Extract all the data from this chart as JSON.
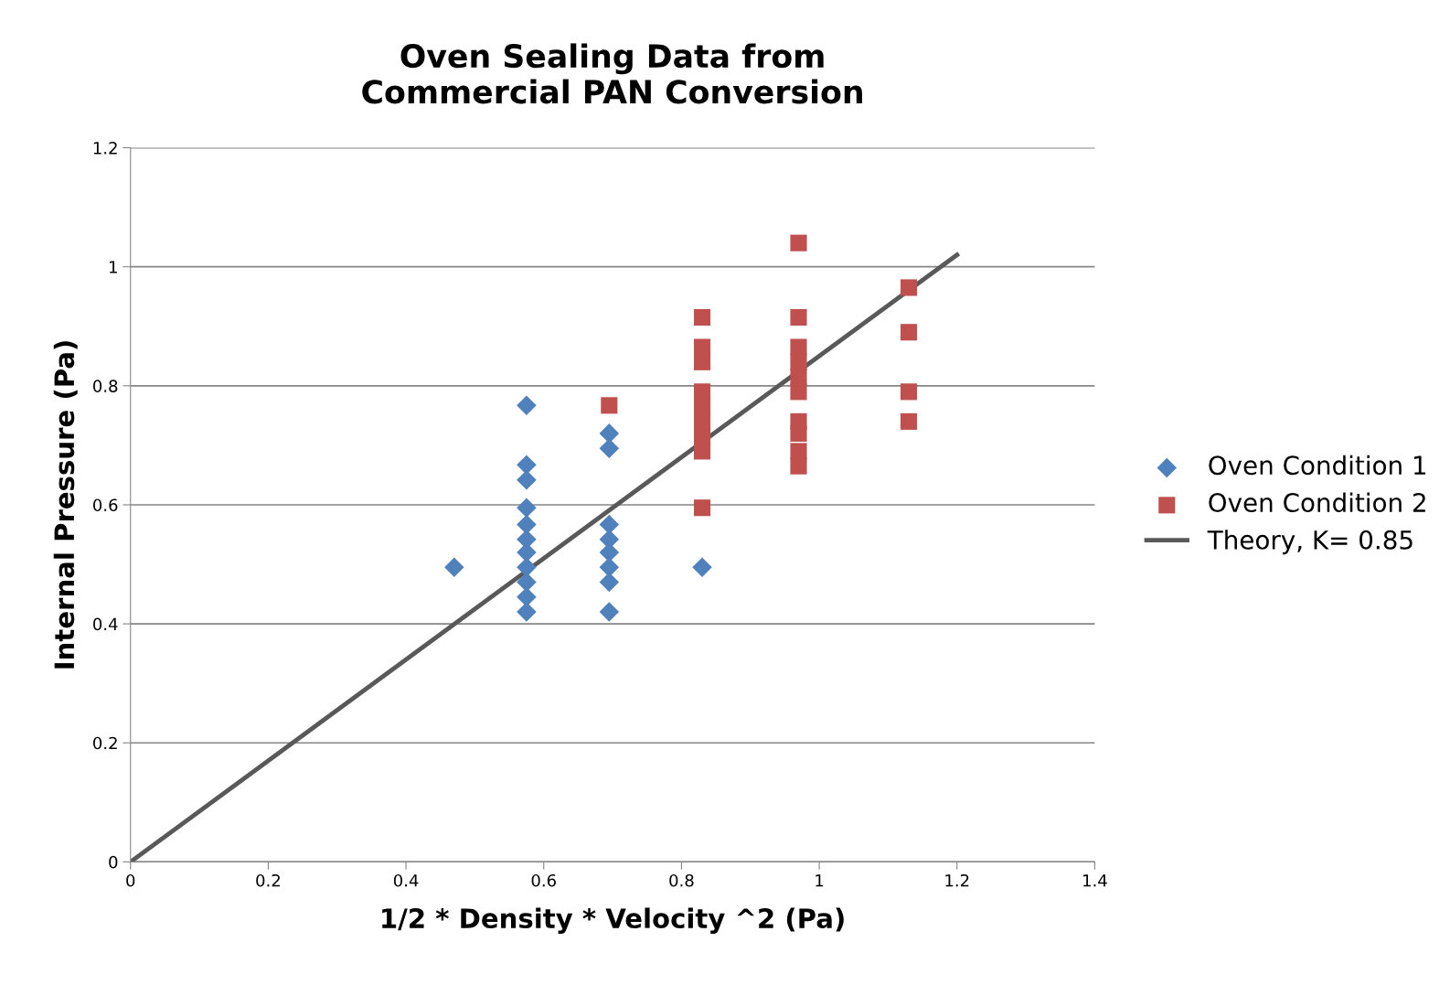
{
  "chart_data": {
    "type": "scatter",
    "title": "Oven Sealing Data from\nCommercial PAN Conversion",
    "xlabel": "1/2 * Density * Velocity ^2 (Pa)",
    "ylabel": "Internal Pressure (Pa)",
    "series": [
      {
        "name": "Oven Condition 1",
        "color": "#4f81bd",
        "marker": "diamond",
        "x": [
          0.47,
          0.575,
          0.575,
          0.575,
          0.575,
          0.575,
          0.575,
          0.575,
          0.575,
          0.575,
          0.575,
          0.575,
          0.695,
          0.695,
          0.695,
          0.695,
          0.695,
          0.695,
          0.695,
          0.695,
          0.83
        ],
        "values": [
          0.495,
          0.767,
          0.667,
          0.642,
          0.595,
          0.567,
          0.542,
          0.52,
          0.495,
          0.47,
          0.445,
          0.42,
          0.72,
          0.695,
          0.567,
          0.542,
          0.52,
          0.495,
          0.47,
          0.42,
          0.495
        ]
      },
      {
        "name": "Oven Condition 2",
        "color": "#c0504d",
        "marker": "square",
        "x": [
          0.695,
          0.83,
          0.83,
          0.83,
          0.83,
          0.83,
          0.83,
          0.83,
          0.83,
          0.83,
          0.97,
          0.97,
          0.97,
          0.97,
          0.97,
          0.97,
          0.97,
          0.97,
          0.97,
          0.97,
          1.13,
          1.13,
          1.13,
          1.13
        ],
        "values": [
          0.767,
          0.915,
          0.865,
          0.84,
          0.79,
          0.765,
          0.74,
          0.715,
          0.69,
          0.595,
          1.04,
          0.915,
          0.865,
          0.84,
          0.815,
          0.79,
          0.74,
          0.72,
          0.69,
          0.665,
          0.965,
          0.89,
          0.79,
          0.74
        ]
      },
      {
        "name": "Theory, K= 0.85",
        "color": "#595959",
        "type": "line",
        "marker": "none",
        "line_style": "solid",
        "x": [
          0,
          1.2
        ],
        "values": [
          0,
          1.02
        ]
      }
    ],
    "xlim": [
      0,
      1.4
    ],
    "xticks": [
      0,
      0.2,
      0.4,
      0.6,
      0.8,
      1,
      1.2,
      1.4
    ],
    "ylim": [
      0,
      1.2
    ],
    "yticks": [
      0,
      0.2,
      0.4,
      0.6,
      0.8,
      1,
      1.2
    ],
    "grid": "y",
    "legend": "right"
  }
}
